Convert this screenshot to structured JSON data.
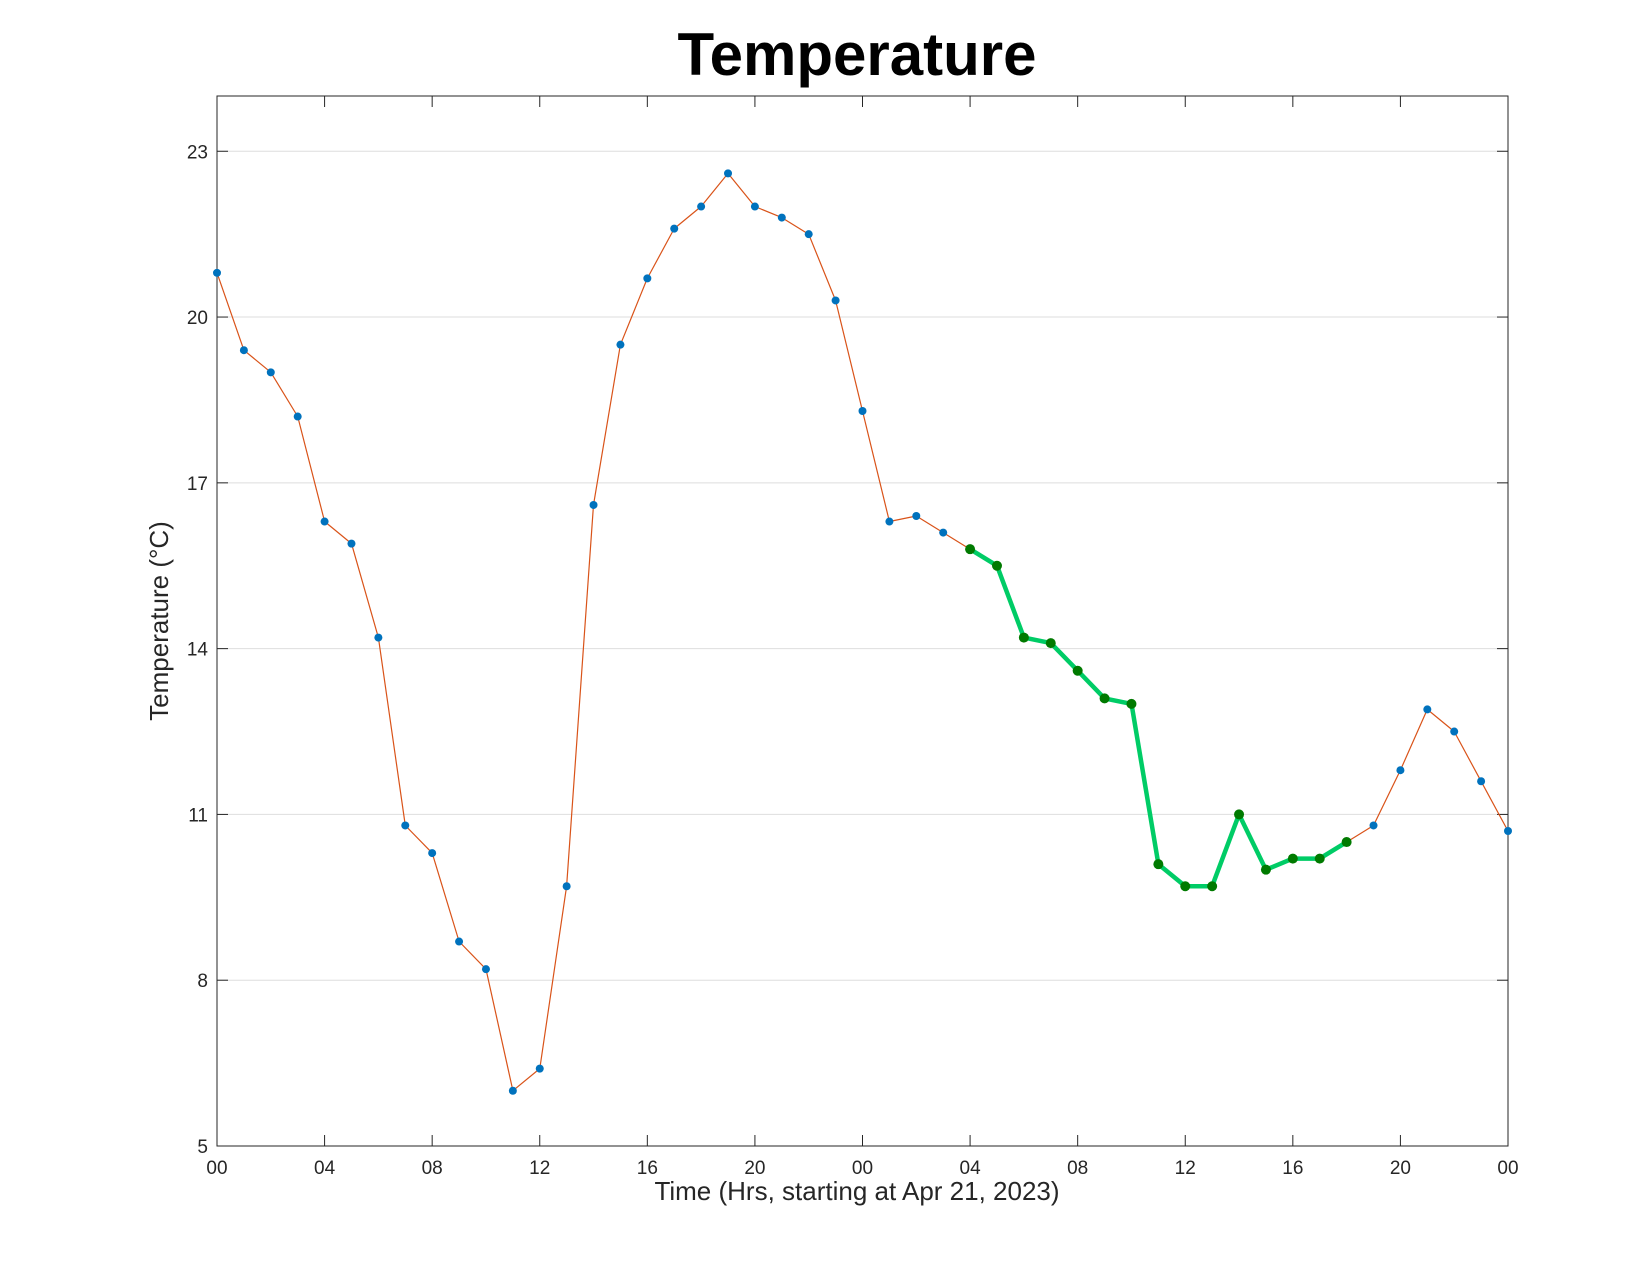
{
  "chart_data": {
    "type": "line",
    "title": "Temperature",
    "xlabel": "Time (Hrs, starting at Apr 21, 2023)",
    "ylabel": "Temperature (°C)",
    "xlim": [
      0,
      48
    ],
    "ylim": [
      5,
      24
    ],
    "xticks": [
      0,
      4,
      8,
      12,
      16,
      20,
      24,
      28,
      32,
      36,
      40,
      44,
      48
    ],
    "xtick_labels": [
      "00",
      "04",
      "08",
      "12",
      "16",
      "20",
      "00",
      "04",
      "08",
      "12",
      "16",
      "20",
      "00"
    ],
    "yticks": [
      5,
      8,
      11,
      14,
      17,
      20,
      23
    ],
    "ytick_labels": [
      "5",
      "8",
      "11",
      "14",
      "17",
      "20",
      "23"
    ],
    "grid": "y-major",
    "series": [
      {
        "role": "all-hours",
        "x": [
          0,
          1,
          2,
          3,
          4,
          5,
          6,
          7,
          8,
          9,
          10,
          11,
          12,
          13,
          14,
          15,
          16,
          17,
          18,
          19,
          20,
          21,
          22,
          23,
          24,
          25,
          26,
          27,
          28,
          29,
          30,
          31,
          32,
          33,
          34,
          35,
          36,
          37,
          38,
          39,
          40,
          41,
          42,
          43,
          44,
          45,
          46,
          47,
          48
        ],
        "values": [
          20.8,
          19.4,
          19.0,
          18.2,
          16.3,
          15.9,
          14.2,
          10.8,
          10.3,
          8.7,
          8.2,
          6.0,
          6.4,
          9.7,
          16.6,
          19.5,
          20.7,
          21.6,
          22.0,
          22.6,
          22.0,
          21.8,
          21.5,
          20.3,
          18.3,
          16.3,
          16.4,
          16.1,
          15.8,
          15.5,
          14.2,
          14.1,
          13.6,
          13.1,
          13.0,
          10.1,
          9.7,
          9.7,
          11.0,
          10.0,
          10.2,
          10.2,
          10.5,
          10.8,
          11.8,
          12.9,
          12.5,
          11.6,
          10.7
        ],
        "line_color": "#d95319",
        "marker_color": "#0072bd"
      },
      {
        "role": "highlighted-segment",
        "x": [
          28,
          29,
          30,
          31,
          32,
          33,
          34,
          35,
          36,
          37,
          38,
          39,
          40,
          41,
          42
        ],
        "values": [
          15.8,
          15.5,
          14.2,
          14.1,
          13.6,
          13.1,
          13.0,
          10.1,
          9.7,
          9.7,
          11.0,
          10.0,
          10.2,
          10.2,
          10.5
        ],
        "line_color": "#00cc66",
        "marker_color": "#007a00"
      }
    ]
  }
}
